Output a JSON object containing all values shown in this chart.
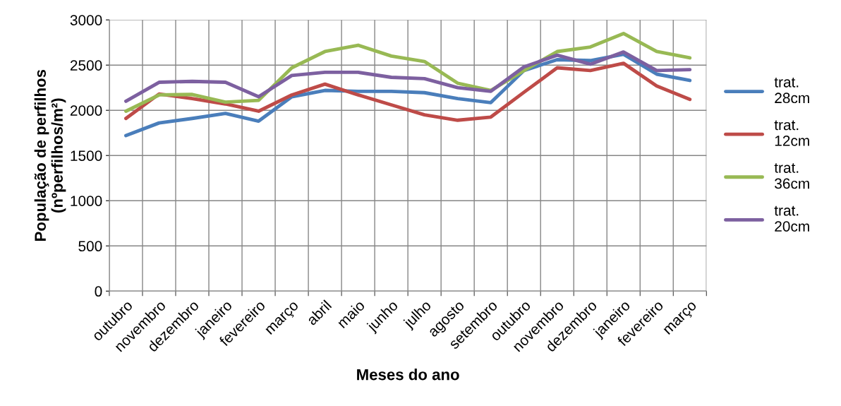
{
  "chart_data": {
    "type": "line",
    "xlabel": "Meses do ano",
    "ylabel": "População de perfilhos\n(nºperfilhos/m²)",
    "categories": [
      "outubro",
      "novembro",
      "dezembro",
      "janeiro",
      "fevereiro",
      "março",
      "abril",
      "maio",
      "junho",
      "julho",
      "agosto",
      "setembro",
      "outubro",
      "novembro",
      "dezembro",
      "janeiro",
      "fevereiro",
      "março"
    ],
    "series": [
      {
        "name": "trat.\n28cm",
        "color": "#4a7ebb",
        "values": [
          1720,
          1860,
          1910,
          1965,
          1880,
          2150,
          2220,
          2210,
          2210,
          2195,
          2130,
          2085,
          2440,
          2560,
          2550,
          2620,
          2400,
          2330
        ]
      },
      {
        "name": "trat.\n12cm",
        "color": "#be4b48",
        "values": [
          1910,
          2180,
          2130,
          2070,
          1990,
          2170,
          2290,
          2170,
          2060,
          1950,
          1890,
          1925,
          2200,
          2470,
          2440,
          2520,
          2270,
          2120
        ]
      },
      {
        "name": "trat.\n36cm",
        "color": "#98b954",
        "values": [
          1990,
          2170,
          2175,
          2090,
          2110,
          2470,
          2650,
          2720,
          2600,
          2540,
          2300,
          2220,
          2440,
          2650,
          2700,
          2850,
          2650,
          2580
        ]
      },
      {
        "name": "trat.\n20cm",
        "color": "#7d60a0",
        "values": [
          2100,
          2310,
          2320,
          2310,
          2150,
          2385,
          2420,
          2420,
          2365,
          2350,
          2250,
          2210,
          2480,
          2610,
          2510,
          2645,
          2440,
          2450
        ]
      }
    ],
    "ylim": [
      0,
      3000
    ],
    "yticks": [
      0,
      500,
      1000,
      1500,
      2000,
      2500,
      3000
    ],
    "grid": true,
    "legend": "right",
    "marker": "none",
    "line_style": "solid"
  }
}
